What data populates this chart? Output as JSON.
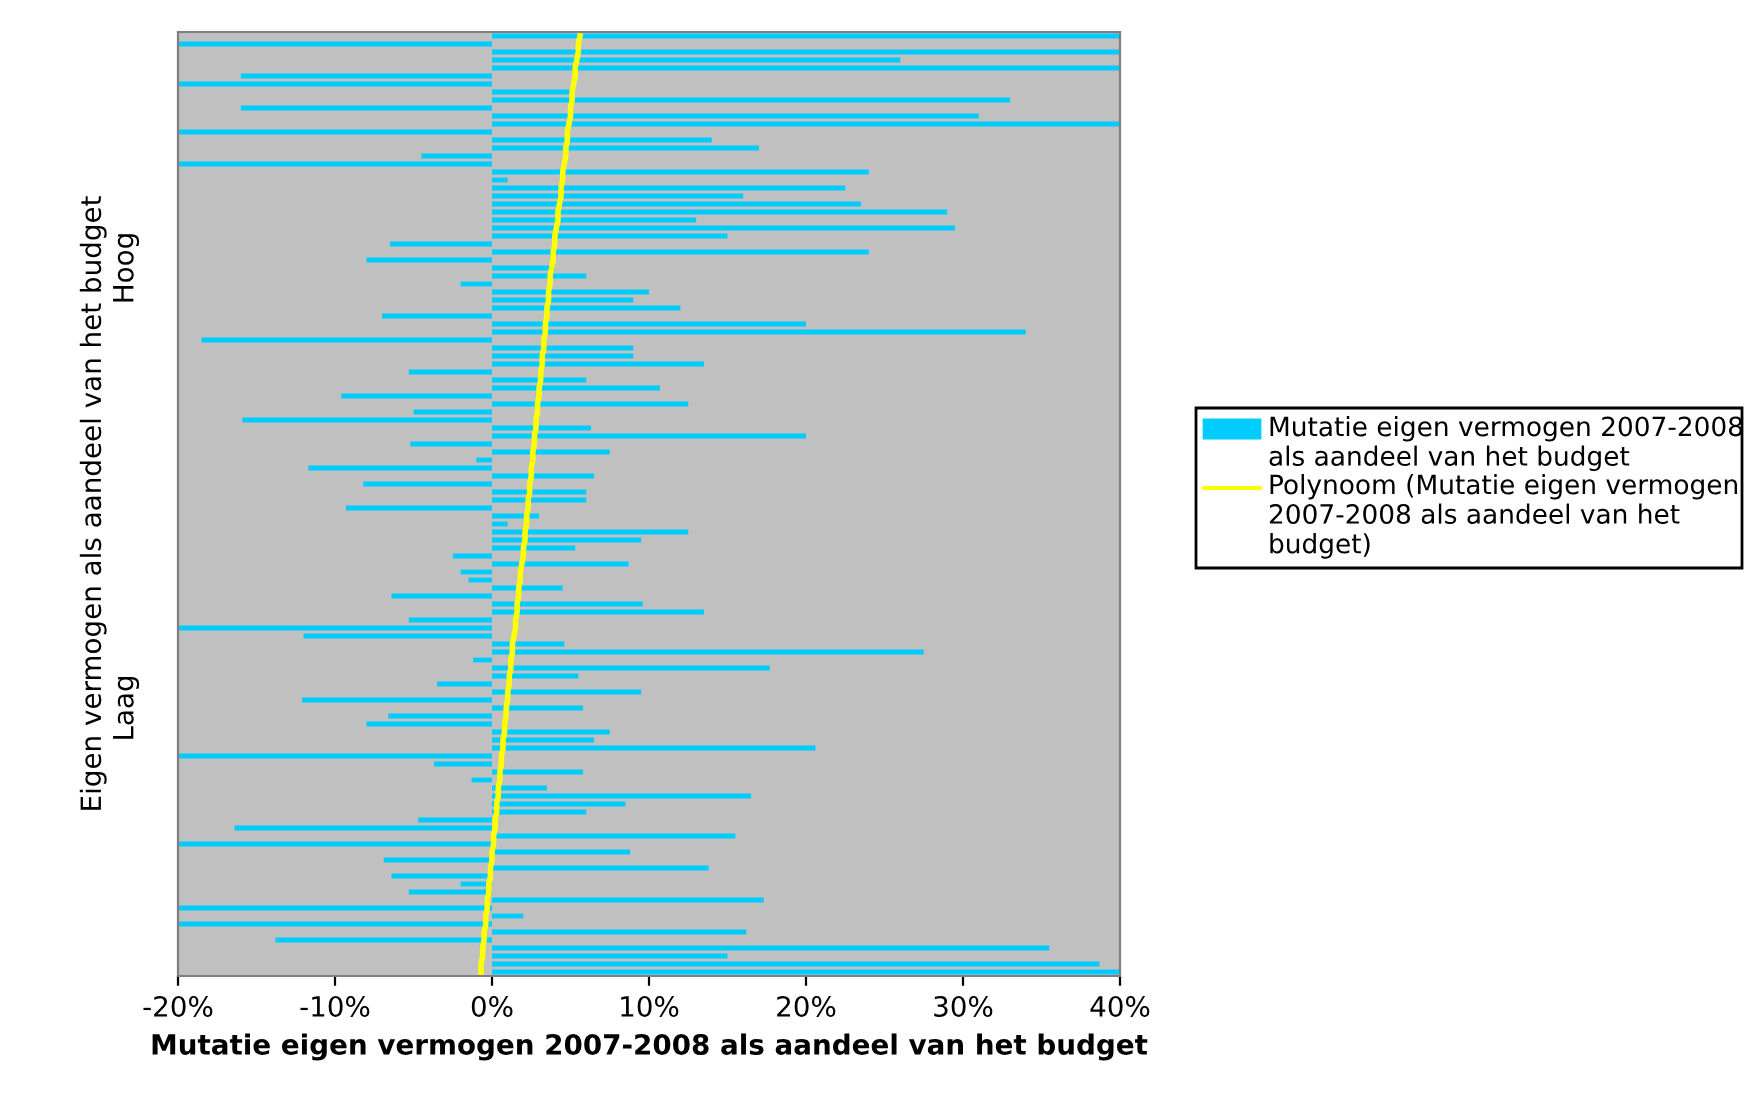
{
  "chart_data": {
    "type": "bar",
    "orientation": "horizontal",
    "xlabel": "Mutatie eigen vermogen 2007-2008 als aandeel van het budget",
    "ylabel": "Eigen vermogen als aandeel van het budget",
    "categories": [
      null,
      null,
      null,
      null,
      null,
      null,
      null,
      null,
      null,
      null,
      null,
      null,
      null,
      null,
      null,
      null,
      null,
      null,
      null,
      null,
      null,
      null,
      null,
      null,
      null,
      null,
      null,
      null,
      null,
      "Hoog",
      null,
      null,
      null,
      null,
      null,
      null,
      null,
      null,
      null,
      null,
      null,
      null,
      null,
      null,
      null,
      null,
      null,
      null,
      null,
      null,
      null,
      null,
      null,
      null,
      null,
      null,
      null,
      null,
      null,
      null,
      null,
      null,
      null,
      null,
      null,
      null,
      null,
      null,
      null,
      null,
      null,
      null,
      null,
      null,
      null,
      null,
      null,
      null,
      null,
      null,
      null,
      null,
      null,
      null,
      "Laag",
      null,
      null,
      null,
      null,
      null,
      null,
      null,
      null,
      null,
      null,
      null,
      null,
      null,
      null,
      null,
      null,
      null,
      null,
      null,
      null,
      null,
      null,
      null,
      null,
      null,
      null,
      null,
      null,
      null,
      null,
      null,
      null,
      null
    ],
    "series": [
      {
        "name": "Mutatie eigen vermogen 2007-2008 als aandeel van het budget",
        "color": "#00ccff",
        "values": [
          40,
          -20,
          40,
          26,
          40,
          -16,
          -20,
          5,
          33,
          -16,
          31,
          40,
          -20,
          14,
          17,
          -4.5,
          -20,
          24,
          1,
          22.5,
          16,
          23.5,
          29,
          13,
          29.5,
          15,
          -6.5,
          24,
          -8,
          4,
          6,
          -2,
          10,
          9,
          12,
          -7,
          20,
          34,
          -18.5,
          9,
          9,
          13.5,
          -5.3,
          6,
          10.7,
          -9.6,
          12.5,
          -5,
          -15.9,
          6.3,
          20,
          -5.2,
          7.5,
          -1,
          -11.7,
          6.5,
          -8.2,
          6,
          6,
          -9.3,
          3,
          1,
          12.5,
          9.5,
          5.3,
          -2.5,
          8.7,
          -2,
          -1.5,
          4.5,
          -6.4,
          9.6,
          13.5,
          -5.3,
          -20,
          -12,
          4.6,
          27.5,
          -1.2,
          17.7,
          5.5,
          -3.5,
          9.5,
          -12.1,
          5.8,
          -6.6,
          -8,
          7.5,
          6.5,
          20.6,
          -20,
          -3.7,
          5.8,
          -1.3,
          3.5,
          16.5,
          8.5,
          6,
          -4.7,
          -16.4,
          15.5,
          -20,
          8.8,
          -6.9,
          13.8,
          -6.4,
          -2,
          -5.3,
          17.3,
          -20,
          2,
          -20,
          16.2,
          -13.8,
          35.5,
          15,
          38.7,
          40
        ]
      },
      {
        "name": "Polynoom (Mutatie eigen vermogen 2007-2008 als aandeel van het budget)",
        "type": "line",
        "color": "#ffff00",
        "values": [
          5.6,
          5.5,
          5.5,
          5.4,
          5.3,
          5.3,
          5.2,
          5.1,
          5.1,
          5.0,
          5.0,
          4.9,
          4.8,
          4.8,
          4.7,
          4.7,
          4.6,
          4.5,
          4.5,
          4.4,
          4.4,
          4.3,
          4.2,
          4.2,
          4.1,
          4.0,
          4.0,
          3.9,
          3.9,
          3.8,
          3.7,
          3.7,
          3.6,
          3.6,
          3.5,
          3.5,
          3.4,
          3.4,
          3.3,
          3.3,
          3.2,
          3.2,
          3.1,
          3.1,
          3.0,
          3.0,
          2.9,
          2.9,
          2.8,
          2.8,
          2.7,
          2.7,
          2.6,
          2.6,
          2.5,
          2.5,
          2.4,
          2.4,
          2.3,
          2.3,
          2.2,
          2.2,
          2.1,
          2.1,
          2.0,
          2.0,
          1.9,
          1.8,
          1.8,
          1.7,
          1.7,
          1.6,
          1.6,
          1.5,
          1.5,
          1.4,
          1.3,
          1.3,
          1.2,
          1.2,
          1.1,
          1.1,
          1.0,
          1.0,
          0.9,
          0.9,
          0.8,
          0.8,
          0.7,
          0.7,
          0.6,
          0.6,
          0.5,
          0.5,
          0.4,
          0.4,
          0.3,
          0.3,
          0.2,
          0.2,
          0.1,
          0.1,
          0.0,
          0.0,
          -0.1,
          -0.1,
          -0.2,
          -0.2,
          -0.3,
          -0.3,
          -0.4,
          -0.4,
          -0.5,
          -0.5,
          -0.6,
          -0.6,
          -0.7,
          -0.7
        ]
      }
    ],
    "xlim": [
      -20,
      40
    ],
    "xticks": [
      {
        "value": -20,
        "label": "-20%"
      },
      {
        "value": -10,
        "label": "-10%"
      },
      {
        "value": 0,
        "label": "0%"
      },
      {
        "value": 10,
        "label": "10%"
      },
      {
        "value": 20,
        "label": "20%"
      },
      {
        "value": 30,
        "label": "30%"
      },
      {
        "value": 40,
        "label": "40%"
      }
    ],
    "legend": "right",
    "grid": false
  }
}
